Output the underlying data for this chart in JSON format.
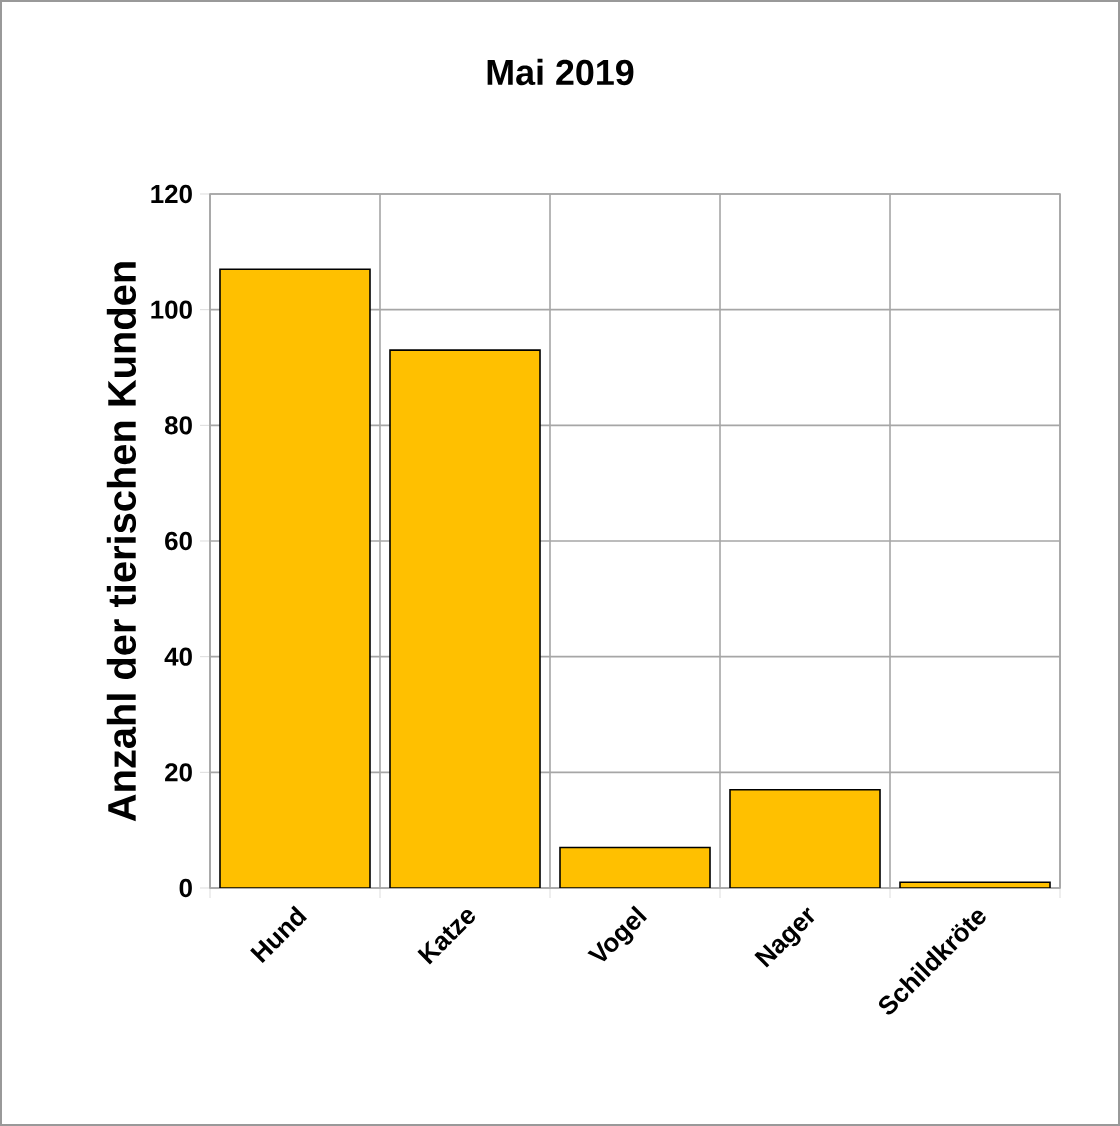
{
  "chart_data": {
    "type": "bar",
    "title": "Mai 2019",
    "ylabel": "Anzahl der tierischen Kunden",
    "categories": [
      "Hund",
      "Katze",
      "Vogel",
      "Nager",
      "Schildkröte"
    ],
    "values": [
      107,
      93,
      7,
      17,
      1
    ],
    "color": "#ffc000",
    "ylim": [
      0,
      120
    ],
    "yticks": [
      0,
      20,
      40,
      60,
      80,
      100,
      120
    ],
    "grid": true
  }
}
